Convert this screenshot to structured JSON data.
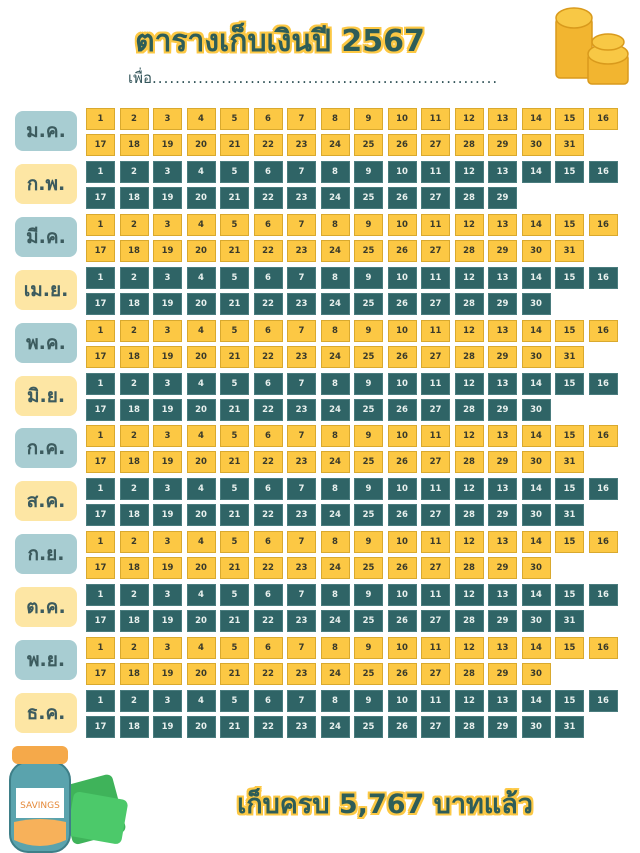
{
  "header": {
    "title": "ตารางเก็บเงินปี 2567",
    "purpose_label": "เพื่อ",
    "purpose_dots": "............................................................"
  },
  "months": [
    {
      "label": "ม.ค.",
      "days": 31
    },
    {
      "label": "ก.พ.",
      "days": 29
    },
    {
      "label": "มี.ค.",
      "days": 31
    },
    {
      "label": "เม.ย.",
      "days": 30
    },
    {
      "label": "พ.ค.",
      "days": 31
    },
    {
      "label": "มิ.ย.",
      "days": 30
    },
    {
      "label": "ก.ค.",
      "days": 31
    },
    {
      "label": "ส.ค.",
      "days": 31
    },
    {
      "label": "ก.ย.",
      "days": 30
    },
    {
      "label": "ต.ค.",
      "days": 31
    },
    {
      "label": "พ.ย.",
      "days": 30
    },
    {
      "label": "ธ.ค.",
      "days": 31
    }
  ],
  "footer": {
    "text": "เก็บครบ 5,767 บาทแล้ว"
  },
  "jar": {
    "label": "SAVINGS"
  },
  "colors": {
    "yellow": "#fcc844",
    "teal": "#2f6466",
    "label_blue": "#a8cdd2",
    "label_yellow": "#fde6a4"
  }
}
